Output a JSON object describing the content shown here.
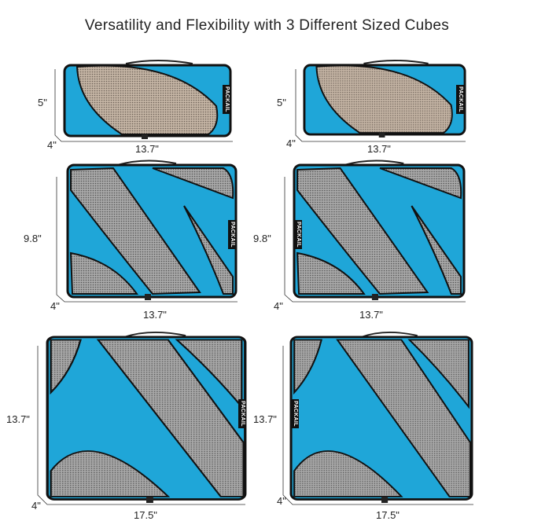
{
  "title": "Versatility and Flexibility with 3 Different Sized Cubes",
  "colors": {
    "cube_body": "#1fa6d8",
    "mesh": "#8e8e8e",
    "mesh_small": "#b8a898",
    "trim": "#111111"
  },
  "brand_tag": "PACKAIL",
  "cubes": [
    {
      "size": "small",
      "height": "5\"",
      "depth": "4\"",
      "width": "13.7\""
    },
    {
      "size": "small",
      "height": "5\"",
      "depth": "4\"",
      "width": "13.7\""
    },
    {
      "size": "medium",
      "height": "9.8\"",
      "depth": "4\"",
      "width": "13.7\""
    },
    {
      "size": "medium",
      "height": "9.8\"",
      "depth": "4\"",
      "width": "13.7\""
    },
    {
      "size": "large",
      "height": "13.7\"",
      "depth": "4\"",
      "width": "17.5\""
    },
    {
      "size": "large",
      "height": "13.7\"",
      "depth": "4\"",
      "width": "17.5\""
    }
  ]
}
